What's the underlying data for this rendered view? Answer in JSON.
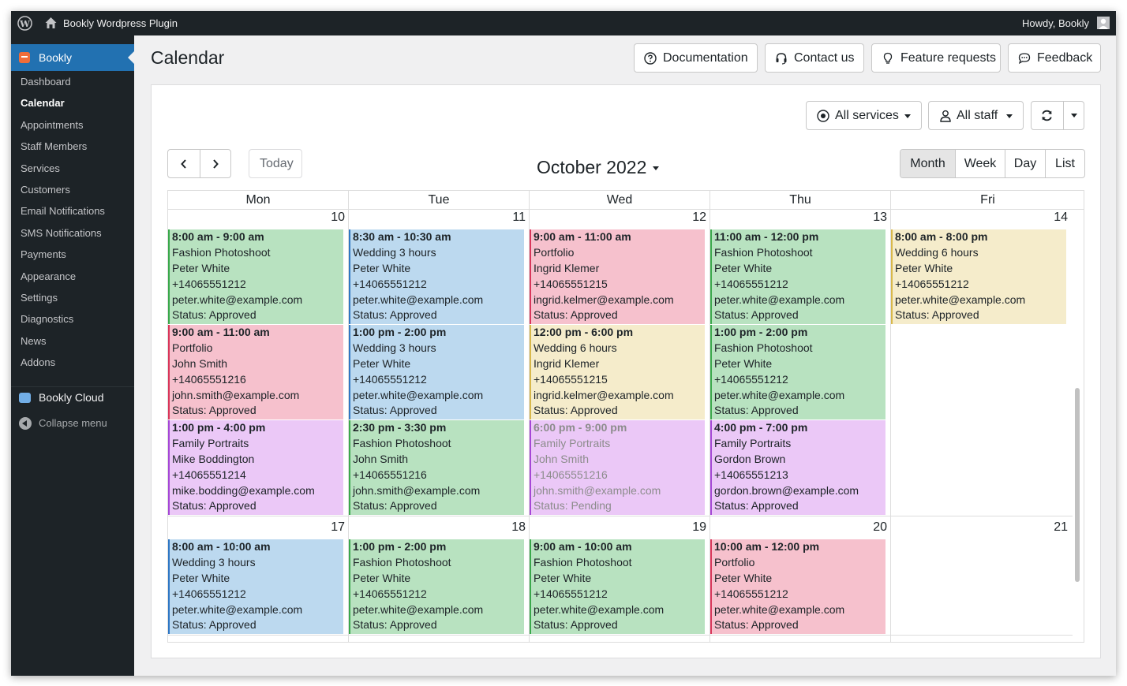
{
  "adminbar": {
    "site_name": "Bookly Wordpress Plugin",
    "howdy": "Howdy, Bookly"
  },
  "sidebar": {
    "plugin_label": "Bookly",
    "items": [
      {
        "label": "Dashboard"
      },
      {
        "label": "Calendar"
      },
      {
        "label": "Appointments"
      },
      {
        "label": "Staff Members"
      },
      {
        "label": "Services"
      },
      {
        "label": "Customers"
      },
      {
        "label": "Email Notifications"
      },
      {
        "label": "SMS Notifications"
      },
      {
        "label": "Payments"
      },
      {
        "label": "Appearance"
      },
      {
        "label": "Settings"
      },
      {
        "label": "Diagnostics"
      },
      {
        "label": "News"
      },
      {
        "label": "Addons"
      }
    ],
    "current_item": "Calendar",
    "cloud_label": "Bookly Cloud",
    "collapse_label": "Collapse menu"
  },
  "header": {
    "title": "Calendar",
    "buttons": {
      "documentation": "Documentation",
      "contact": "Contact us",
      "feature_requests": "Feature requests",
      "feedback": "Feedback"
    }
  },
  "toolbar": {
    "services_filter": "All services",
    "staff_filter": "All staff",
    "today_label": "Today",
    "month_title": "October 2022",
    "views": [
      "Month",
      "Week",
      "Day",
      "List"
    ],
    "active_view": "Month"
  },
  "colors": {
    "green_bg": "#b8e2c0",
    "green_border": "#3aa84b",
    "blue_bg": "#bcd9ef",
    "blue_border": "#2f77c4",
    "pink_bg": "#f6c1cd",
    "pink_border": "#d9365a",
    "yellow_bg": "#f5eccb",
    "yellow_border": "#d8b84a",
    "purple_bg": "#ebc8f7",
    "purple_border": "#a547d6",
    "accent": "#2271b1"
  },
  "calendar": {
    "weekdays": [
      "Mon",
      "Tue",
      "Wed",
      "Thu",
      "Fri"
    ],
    "weeks": [
      {
        "days": [
          {
            "num": "10",
            "events": [
              {
                "time": "8:00 am - 9:00 am",
                "service": "Fashion Photoshoot",
                "customer": "Peter White",
                "phone": "+14065551212",
                "email": "peter.white@example.com",
                "status": "Status: Approved",
                "color": "green"
              },
              {
                "time": "9:00 am - 11:00 am",
                "service": "Portfolio",
                "customer": "John Smith",
                "phone": "+14065551216",
                "email": "john.smith@example.com",
                "status": "Status: Approved",
                "color": "pink"
              },
              {
                "time": "1:00 pm - 4:00 pm",
                "service": "Family Portraits",
                "customer": "Mike Boddington",
                "phone": "+14065551214",
                "email": "mike.bodding@example.com",
                "status": "Status: Approved",
                "color": "purple"
              }
            ]
          },
          {
            "num": "11",
            "events": [
              {
                "time": "8:30 am - 10:30 am",
                "service": "Wedding 3 hours",
                "customer": "Peter White",
                "phone": "+14065551212",
                "email": "peter.white@example.com",
                "status": "Status: Approved",
                "color": "blue"
              },
              {
                "time": "1:00 pm - 2:00 pm",
                "service": "Wedding 3 hours",
                "customer": "Peter White",
                "phone": "+14065551212",
                "email": "peter.white@example.com",
                "status": "Status: Approved",
                "color": "blue"
              },
              {
                "time": "2:30 pm - 3:30 pm",
                "service": "Fashion Photoshoot",
                "customer": "John Smith",
                "phone": "+14065551216",
                "email": "john.smith@example.com",
                "status": "Status: Approved",
                "color": "green"
              }
            ]
          },
          {
            "num": "12",
            "events": [
              {
                "time": "9:00 am - 11:00 am",
                "service": "Portfolio",
                "customer": "Ingrid Klemer",
                "phone": "+14065551215",
                "email": "ingrid.kelmer@example.com",
                "status": "Status: Approved",
                "color": "pink"
              },
              {
                "time": "12:00 pm - 6:00 pm",
                "service": "Wedding 6 hours",
                "customer": "Ingrid Klemer",
                "phone": "+14065551215",
                "email": "ingrid.kelmer@example.com",
                "status": "Status: Approved",
                "color": "yellow"
              },
              {
                "time": "6:00 pm - 9:00 pm",
                "service": "Family Portraits",
                "customer": "John Smith",
                "phone": "+14065551216",
                "email": "john.smith@example.com",
                "status": "Status: Pending",
                "color": "purple",
                "pending": true
              }
            ]
          },
          {
            "num": "13",
            "events": [
              {
                "time": "11:00 am - 12:00 pm",
                "service": "Fashion Photoshoot",
                "customer": "Peter White",
                "phone": "+14065551212",
                "email": "peter.white@example.com",
                "status": "Status: Approved",
                "color": "green"
              },
              {
                "time": "1:00 pm - 2:00 pm",
                "service": "Fashion Photoshoot",
                "customer": "Peter White",
                "phone": "+14065551212",
                "email": "peter.white@example.com",
                "status": "Status: Approved",
                "color": "green"
              },
              {
                "time": "4:00 pm - 7:00 pm",
                "service": "Family Portraits",
                "customer": "Gordon Brown",
                "phone": "+14065551213",
                "email": "gordon.brown@example.com",
                "status": "Status: Approved",
                "color": "purple"
              }
            ]
          },
          {
            "num": "14",
            "events": [
              {
                "time": "8:00 am - 8:00 pm",
                "service": "Wedding 6 hours",
                "customer": "Peter White",
                "phone": "+14065551212",
                "email": "peter.white@example.com",
                "status": "Status: Approved",
                "color": "yellow"
              }
            ]
          }
        ]
      },
      {
        "days": [
          {
            "num": "17",
            "events": [
              {
                "time": "8:00 am - 10:00 am",
                "service": "Wedding 3 hours",
                "customer": "Peter White",
                "phone": "+14065551212",
                "email": "peter.white@example.com",
                "status": "Status: Approved",
                "color": "blue"
              }
            ]
          },
          {
            "num": "18",
            "events": [
              {
                "time": "1:00 pm - 2:00 pm",
                "service": "Fashion Photoshoot",
                "customer": "Peter White",
                "phone": "+14065551212",
                "email": "peter.white@example.com",
                "status": "Status: Approved",
                "color": "green"
              }
            ]
          },
          {
            "num": "19",
            "events": [
              {
                "time": "9:00 am - 10:00 am",
                "service": "Fashion Photoshoot",
                "customer": "Peter White",
                "phone": "+14065551212",
                "email": "peter.white@example.com",
                "status": "Status: Approved",
                "color": "green"
              }
            ]
          },
          {
            "num": "20",
            "events": [
              {
                "time": "10:00 am - 12:00 pm",
                "service": "Portfolio",
                "customer": "Peter White",
                "phone": "+14065551212",
                "email": "peter.white@example.com",
                "status": "Status: Approved",
                "color": "pink"
              }
            ]
          },
          {
            "num": "21",
            "events": []
          }
        ]
      }
    ]
  }
}
